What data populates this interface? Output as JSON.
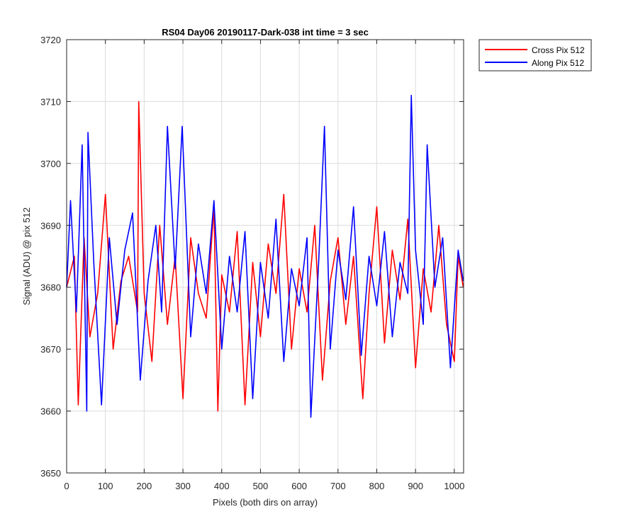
{
  "chart_data": {
    "type": "line",
    "title": "RS04 Day06 20190117-Dark-038 int time = 3 sec",
    "xlabel": "Pixels (both dirs on array)",
    "ylabel": "Signal (ADU) @ pix 512",
    "xlim": [
      0,
      1024
    ],
    "ylim": [
      3650,
      3720
    ],
    "xticks": [
      0,
      100,
      200,
      300,
      400,
      500,
      600,
      700,
      800,
      900,
      1000
    ],
    "yticks": [
      3650,
      3660,
      3670,
      3680,
      3690,
      3700,
      3710,
      3720
    ],
    "grid": true,
    "legend_position": "outside top-right",
    "series": [
      {
        "name": "Cross Pix 512",
        "color": "#ff0000",
        "x": [
          0,
          20,
          30,
          45,
          60,
          80,
          100,
          120,
          140,
          160,
          183,
          186,
          200,
          220,
          240,
          260,
          280,
          300,
          320,
          340,
          360,
          380,
          390,
          400,
          420,
          440,
          460,
          480,
          500,
          520,
          540,
          560,
          580,
          600,
          620,
          640,
          660,
          680,
          700,
          720,
          740,
          764,
          780,
          800,
          820,
          840,
          860,
          880,
          900,
          920,
          940,
          960,
          980,
          1000,
          1010,
          1023
        ],
        "y": [
          3680,
          3685,
          3661,
          3688,
          3672,
          3679,
          3695,
          3670,
          3681,
          3685,
          3676,
          3710,
          3679,
          3668,
          3690,
          3674,
          3685,
          3662,
          3688,
          3679,
          3675,
          3693,
          3660,
          3682,
          3676,
          3689,
          3661,
          3684,
          3672,
          3687,
          3679,
          3695,
          3670,
          3683,
          3676,
          3690,
          3665,
          3681,
          3688,
          3674,
          3685,
          3662,
          3679,
          3693,
          3671,
          3686,
          3678,
          3691,
          3667,
          3683,
          3676,
          3690,
          3674,
          3668,
          3685,
          3680
        ]
      },
      {
        "name": "Along Pix 512",
        "color": "#0000ff",
        "x": [
          0,
          10,
          25,
          40,
          52,
          55,
          70,
          90,
          110,
          130,
          150,
          170,
          190,
          210,
          230,
          245,
          260,
          280,
          298,
          320,
          340,
          360,
          380,
          400,
          420,
          440,
          460,
          480,
          500,
          520,
          540,
          560,
          580,
          600,
          620,
          630,
          650,
          665,
          680,
          700,
          720,
          740,
          760,
          780,
          800,
          820,
          840,
          860,
          880,
          889,
          900,
          920,
          930,
          950,
          970,
          990,
          1010,
          1023
        ],
        "y": [
          3680,
          3694,
          3676,
          3703,
          3660,
          3705,
          3684,
          3661,
          3688,
          3674,
          3686,
          3692,
          3665,
          3681,
          3690,
          3676,
          3706,
          3683,
          3706,
          3672,
          3687,
          3679,
          3694,
          3670,
          3685,
          3676,
          3689,
          3662,
          3684,
          3675,
          3691,
          3668,
          3683,
          3677,
          3688,
          3659,
          3684,
          3706,
          3670,
          3686,
          3678,
          3693,
          3669,
          3685,
          3677,
          3689,
          3672,
          3684,
          3679,
          3711,
          3686,
          3674,
          3703,
          3680,
          3688,
          3667,
          3686,
          3681
        ]
      }
    ]
  }
}
